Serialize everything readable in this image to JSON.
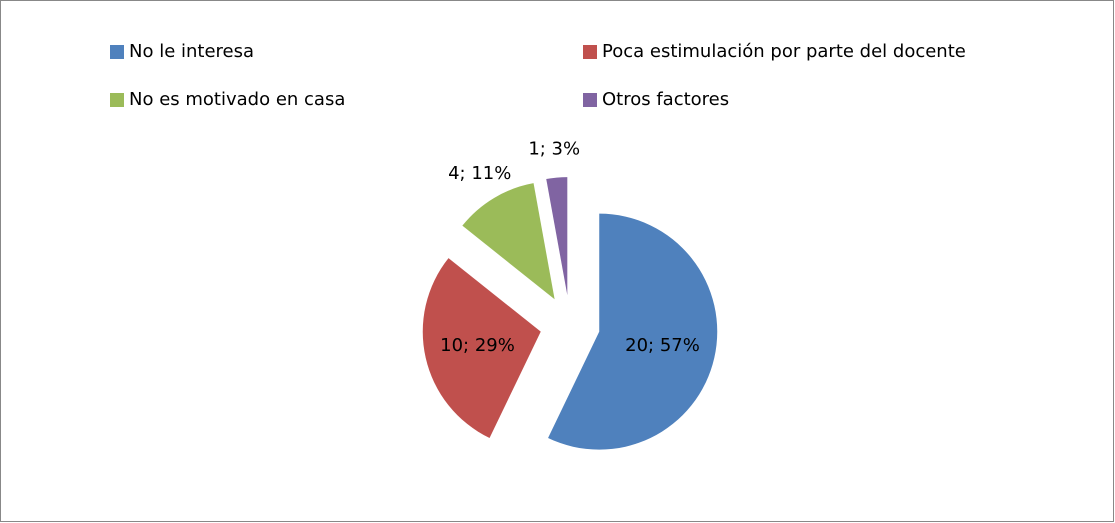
{
  "chart_data": {
    "type": "pie",
    "categories": [
      "No le interesa",
      "Poca estimulación por parte del docente",
      "No es motivado en casa",
      "Otros factores"
    ],
    "values": [
      20,
      10,
      4,
      1
    ],
    "value_labels": [
      "20; 57%",
      "10; 29%",
      "4; 11%",
      "1; 3%"
    ],
    "colors": [
      "#4f81bd",
      "#c0504d",
      "#9bbb59",
      "#8064a2"
    ],
    "legend": "top"
  }
}
